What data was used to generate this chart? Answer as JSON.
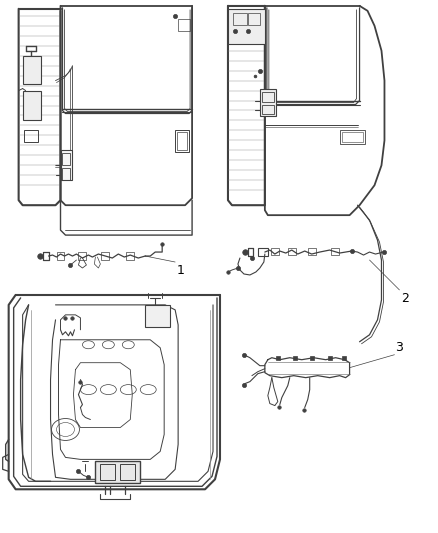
{
  "bg_color": "#ffffff",
  "line_color": "#404040",
  "lw_outer": 1.0,
  "lw_inner": 0.6,
  "lw_wire": 0.7,
  "fig_width": 4.38,
  "fig_height": 5.33,
  "dpi": 100
}
